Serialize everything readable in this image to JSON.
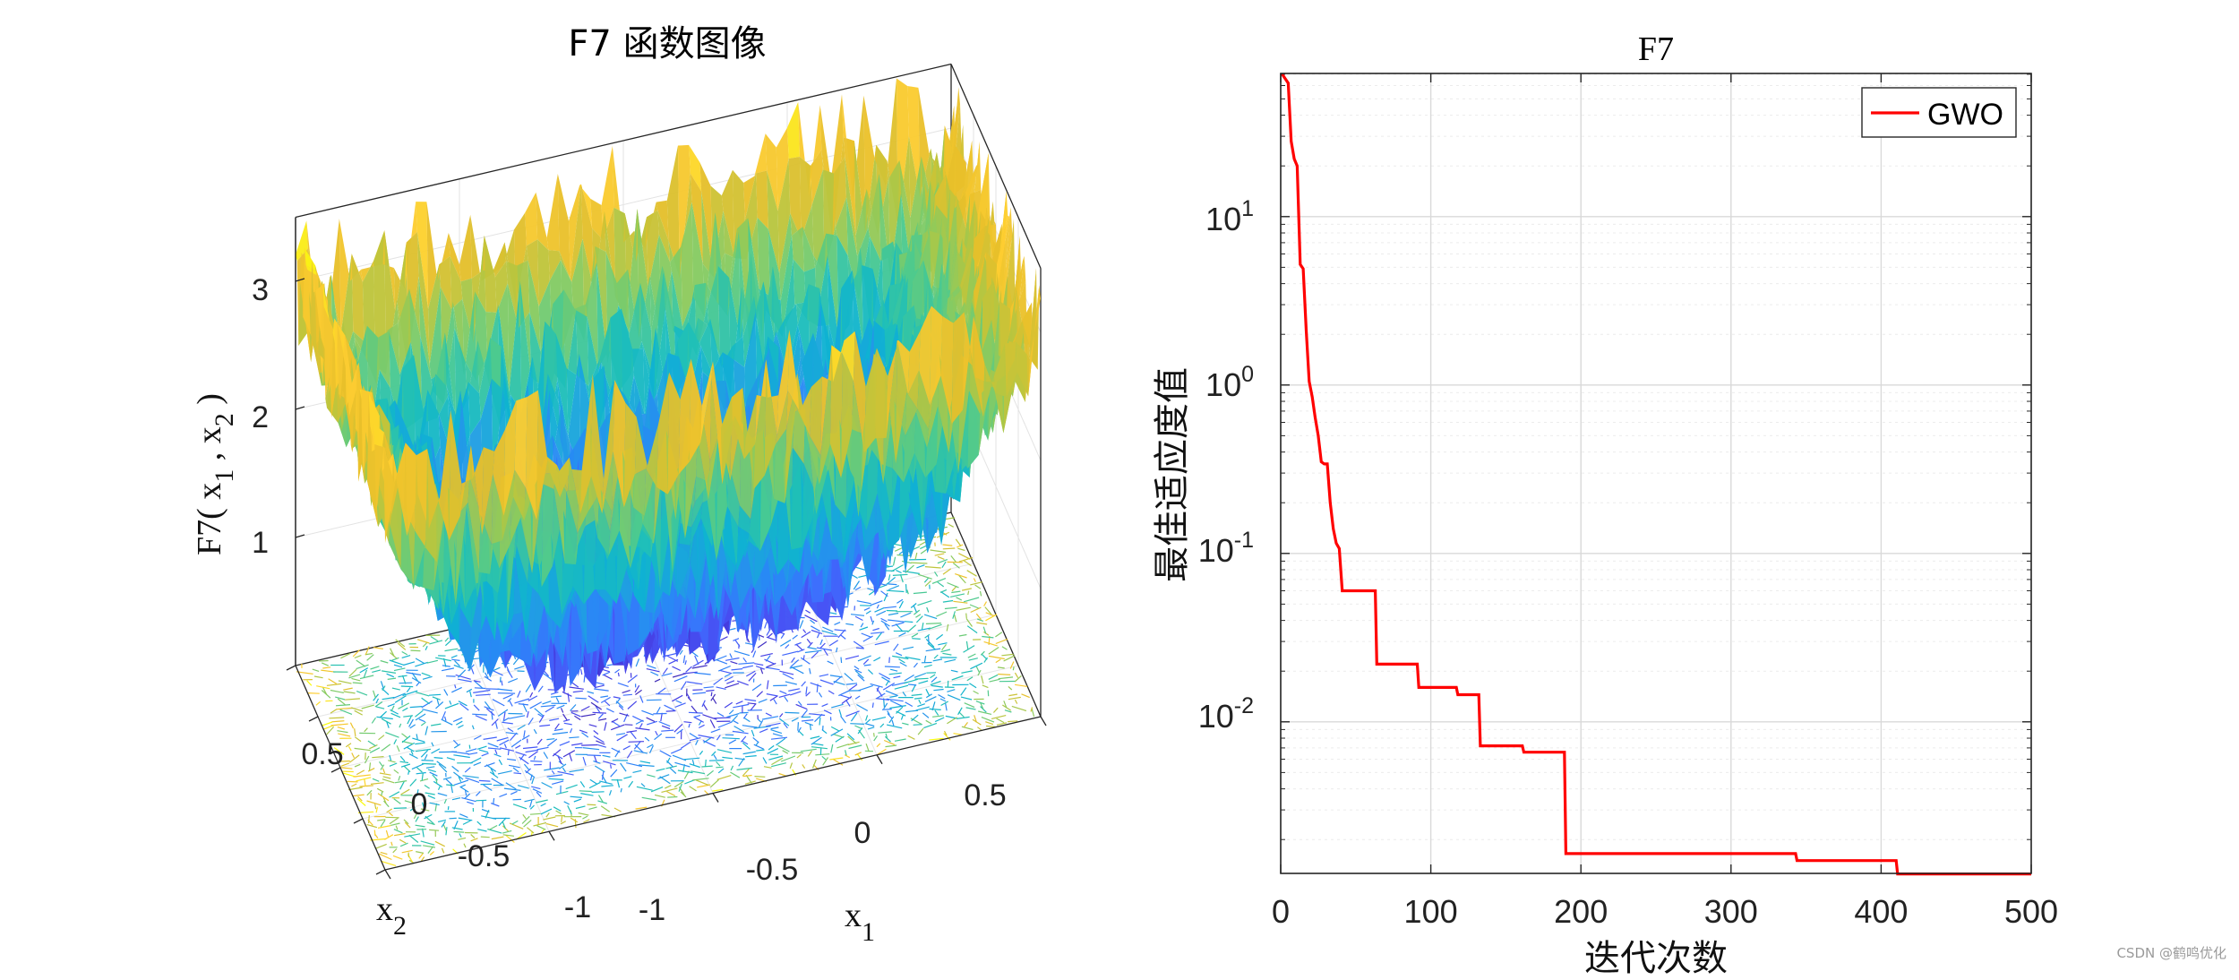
{
  "chart_data": [
    {
      "type": "surface",
      "title": "F7 函数图像",
      "xlabel": "x",
      "xlabel_sub": "1",
      "ylabel": "x",
      "ylabel_sub": "2",
      "zlabel_parts": [
        "F7( x",
        "1",
        " , x",
        "2",
        " )"
      ],
      "xlim": [
        -1,
        1
      ],
      "ylim": [
        -1,
        1
      ],
      "zlim": [
        0,
        3.5
      ],
      "x_ticks": [
        "-1",
        "-0.5",
        "0",
        "0.5"
      ],
      "y_ticks": [
        "-1",
        "-0.5",
        "0",
        "0.5"
      ],
      "z_ticks": [
        "1",
        "2",
        "3"
      ],
      "description_colormap": "parula",
      "contour_projection": true
    },
    {
      "type": "line",
      "title": "F7",
      "xlabel": "迭代次数",
      "ylabel": "最佳适应度值",
      "yscale": "log",
      "xlim": [
        0,
        500
      ],
      "ylim_exp": [
        -2.9,
        1.85
      ],
      "x_ticks": [
        "0",
        "100",
        "200",
        "300",
        "400",
        "500"
      ],
      "y_ticks": [
        {
          "base": "10",
          "exp": "1"
        },
        {
          "base": "10",
          "exp": "0"
        },
        {
          "base": "10",
          "exp": "-1"
        },
        {
          "base": "10",
          "exp": "-2"
        }
      ],
      "legend": "top-right",
      "series": [
        {
          "name": "GWO",
          "color": "#ff0000",
          "x": [
            1,
            5,
            7,
            9,
            11,
            13,
            15,
            17,
            19,
            21,
            23,
            25,
            27,
            29,
            31,
            33,
            35,
            37,
            39,
            41,
            43,
            63,
            64,
            91,
            92,
            117,
            118,
            132,
            133,
            161,
            162,
            189,
            190,
            343,
            344,
            410,
            411,
            500
          ],
          "y": [
            70,
            62,
            28,
            22,
            20,
            5.2,
            4.9,
            2.1,
            1.05,
            0.85,
            0.64,
            0.5,
            0.35,
            0.34,
            0.34,
            0.2,
            0.14,
            0.115,
            0.107,
            0.06,
            0.06,
            0.06,
            0.022,
            0.022,
            0.016,
            0.016,
            0.0145,
            0.0145,
            0.0072,
            0.0072,
            0.0066,
            0.0066,
            0.00165,
            0.00165,
            0.0015,
            0.0015,
            0.00125,
            0.00125
          ]
        }
      ]
    }
  ],
  "watermark": "CSDN @鹤鸣优化"
}
